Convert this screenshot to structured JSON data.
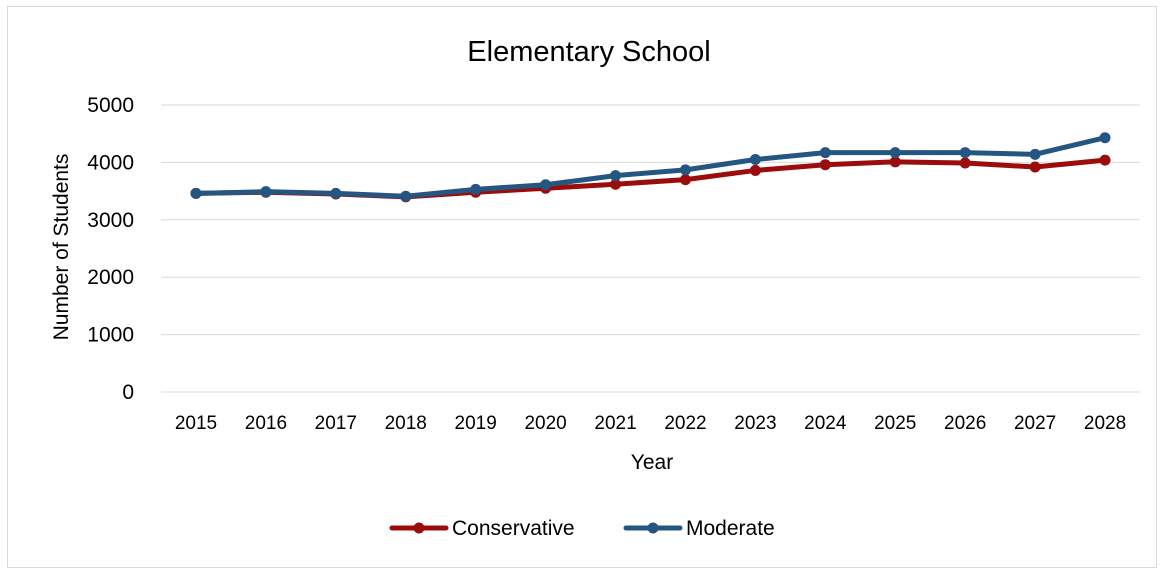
{
  "chart_data": {
    "type": "line",
    "title": "Elementary School",
    "xlabel": "Year",
    "ylabel": "Number of Students",
    "ylim": [
      0,
      5000
    ],
    "yticks": [
      "0",
      "1000",
      "2000",
      "3000",
      "4000",
      "5000"
    ],
    "categories": [
      "2015",
      "2016",
      "2017",
      "2018",
      "2019",
      "2020",
      "2021",
      "2022",
      "2023",
      "2024",
      "2025",
      "2026",
      "2027",
      "2028"
    ],
    "grid": "horizontal",
    "legend_position": "bottom",
    "series": [
      {
        "name": "Conservative",
        "color": "#9b0d0d",
        "values": [
          3460,
          3480,
          3450,
          3400,
          3480,
          3550,
          3620,
          3700,
          3860,
          3960,
          4010,
          3990,
          3920,
          4040
        ]
      },
      {
        "name": "Moderate",
        "color": "#255682",
        "values": [
          3460,
          3490,
          3460,
          3410,
          3530,
          3610,
          3770,
          3870,
          4050,
          4170,
          4170,
          4170,
          4140,
          4430
        ]
      }
    ]
  }
}
